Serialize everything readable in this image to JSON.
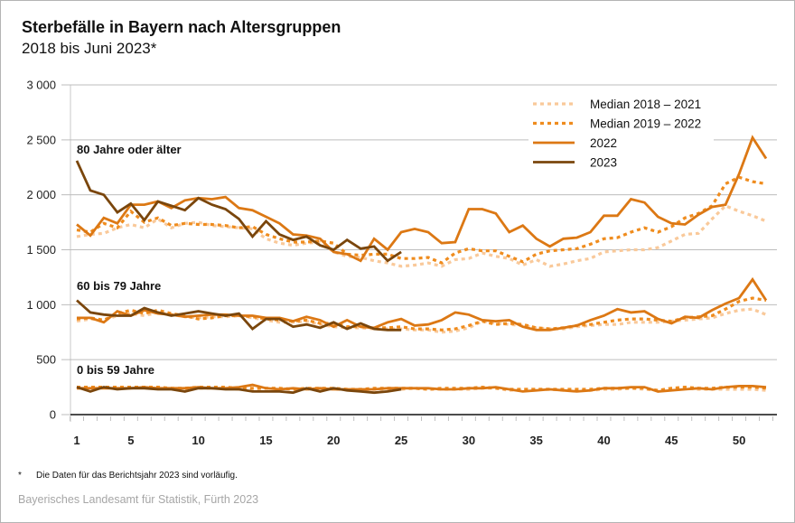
{
  "header": {
    "title": "Sterbefälle in Bayern nach Altersgruppen",
    "subtitle": "2018 bis Juni 2023*"
  },
  "footer": {
    "footnote_marker": "*",
    "footnote": "Die Daten für das Berichtsjahr 2023 sind vorläufig.",
    "source": "Bayerisches Landesamt für Statistik, Fürth 2023"
  },
  "chart_data": {
    "type": "line",
    "title": "Sterbefälle in Bayern nach Altersgruppen",
    "subtitle": "2018 bis Juni 2023*",
    "xlabel": "",
    "ylabel": "",
    "x_range": [
      1,
      52
    ],
    "x_ticks": [
      1,
      5,
      10,
      15,
      20,
      25,
      30,
      35,
      40,
      45,
      50
    ],
    "x_tick_labels": [
      "1",
      "5",
      "10",
      "15",
      "20",
      "25",
      "30",
      "35",
      "40",
      "45",
      "50"
    ],
    "ylim": [
      0,
      3000
    ],
    "y_ticks": [
      0,
      500,
      1000,
      1500,
      2000,
      2500,
      3000
    ],
    "y_tick_labels": [
      "0",
      "500",
      "1 000",
      "1 500",
      "2 000",
      "2 500",
      "3 000"
    ],
    "grid": true,
    "legend_position": "top-right",
    "legend": [
      {
        "key": "median_2018_2021",
        "label": "Median 2018 – 2021",
        "color": "#f9c99a",
        "style": "dotted"
      },
      {
        "key": "median_2019_2022",
        "label": "Median 2019 – 2022",
        "color": "#ef8c1e",
        "style": "dotted"
      },
      {
        "key": "y2022",
        "label": "2022",
        "color": "#dc7814",
        "style": "solid"
      },
      {
        "key": "y2023",
        "label": "2023",
        "color": "#7a460c",
        "style": "solid"
      }
    ],
    "groups": [
      {
        "label": "80 Jahre oder älter",
        "series": {
          "median_2018_2021": [
            1620,
            1640,
            1650,
            1700,
            1730,
            1700,
            1780,
            1700,
            1740,
            1750,
            1720,
            1710,
            1700,
            1690,
            1600,
            1560,
            1540,
            1560,
            1570,
            1480,
            1440,
            1430,
            1400,
            1380,
            1350,
            1360,
            1380,
            1350,
            1410,
            1420,
            1470,
            1440,
            1420,
            1360,
            1410,
            1350,
            1370,
            1400,
            1420,
            1480,
            1490,
            1500,
            1500,
            1520,
            1580,
            1640,
            1650,
            1780,
            1900,
            1850,
            1810,
            1760
          ],
          "median_2019_2022": [
            1680,
            1660,
            1740,
            1700,
            1850,
            1750,
            1790,
            1720,
            1740,
            1730,
            1730,
            1720,
            1700,
            1710,
            1640,
            1600,
            1570,
            1570,
            1580,
            1560,
            1460,
            1450,
            1460,
            1460,
            1420,
            1420,
            1430,
            1380,
            1470,
            1510,
            1490,
            1490,
            1440,
            1390,
            1460,
            1490,
            1500,
            1510,
            1550,
            1600,
            1610,
            1660,
            1700,
            1660,
            1710,
            1790,
            1830,
            1900,
            2100,
            2160,
            2120,
            2100
          ],
          "y2022": [
            1730,
            1630,
            1790,
            1740,
            1910,
            1910,
            1940,
            1880,
            1950,
            1970,
            1960,
            1980,
            1880,
            1860,
            1800,
            1740,
            1640,
            1630,
            1600,
            1480,
            1460,
            1400,
            1600,
            1500,
            1660,
            1690,
            1660,
            1560,
            1570,
            1870,
            1870,
            1830,
            1660,
            1720,
            1600,
            1530,
            1600,
            1610,
            1660,
            1810,
            1810,
            1960,
            1930,
            1800,
            1740,
            1730,
            1820,
            1890,
            1910,
            2190,
            2520,
            2330
          ]
        },
        "y2023": [
          2310,
          2040,
          2000,
          1840,
          1920,
          1770,
          1940,
          1900,
          1860,
          1970,
          1910,
          1870,
          1780,
          1620,
          1760,
          1640,
          1590,
          1620,
          1540,
          1500,
          1590,
          1510,
          1530,
          1400,
          1480
        ]
      },
      {
        "label": "60 bis 79 Jahre",
        "series": {
          "median_2018_2021": [
            850,
            870,
            860,
            900,
            920,
            900,
            930,
            910,
            890,
            880,
            890,
            890,
            900,
            880,
            860,
            840,
            840,
            850,
            820,
            800,
            790,
            790,
            780,
            780,
            780,
            770,
            770,
            750,
            760,
            790,
            850,
            830,
            820,
            810,
            790,
            780,
            780,
            800,
            810,
            820,
            820,
            840,
            840,
            840,
            850,
            860,
            870,
            880,
            920,
            950,
            960,
            910
          ],
          "median_2019_2022": [
            870,
            880,
            860,
            920,
            950,
            920,
            950,
            920,
            900,
            870,
            880,
            900,
            900,
            890,
            870,
            860,
            850,
            860,
            830,
            830,
            800,
            800,
            790,
            790,
            800,
            780,
            780,
            770,
            780,
            810,
            850,
            820,
            830,
            820,
            790,
            780,
            790,
            810,
            820,
            840,
            860,
            870,
            870,
            860,
            850,
            880,
            890,
            900,
            960,
            1030,
            1060,
            1040
          ],
          "y2022": [
            880,
            880,
            840,
            940,
            900,
            950,
            920,
            910,
            890,
            900,
            910,
            910,
            900,
            900,
            880,
            880,
            850,
            890,
            860,
            800,
            860,
            800,
            790,
            840,
            870,
            810,
            820,
            860,
            930,
            910,
            860,
            850,
            860,
            800,
            770,
            770,
            790,
            810,
            860,
            900,
            960,
            930,
            940,
            870,
            830,
            890,
            880,
            950,
            1010,
            1060,
            1230,
            1040
          ]
        },
        "y2023": [
          1040,
          930,
          910,
          900,
          900,
          970,
          930,
          900,
          920,
          940,
          920,
          900,
          920,
          780,
          870,
          870,
          800,
          820,
          790,
          840,
          780,
          830,
          780,
          770,
          770
        ]
      },
      {
        "label": "0 bis 59 Jahre",
        "series": {
          "median_2018_2021": [
            240,
            240,
            250,
            240,
            240,
            250,
            240,
            240,
            230,
            240,
            240,
            240,
            230,
            230,
            240,
            240,
            230,
            230,
            240,
            230,
            230,
            220,
            230,
            230,
            230,
            240,
            230,
            230,
            230,
            230,
            240,
            240,
            220,
            230,
            230,
            230,
            220,
            220,
            220,
            230,
            230,
            240,
            230,
            220,
            240,
            240,
            230,
            230,
            230,
            230,
            230,
            220
          ],
          "median_2019_2022": [
            250,
            250,
            250,
            250,
            250,
            250,
            250,
            240,
            240,
            250,
            250,
            250,
            240,
            240,
            240,
            240,
            230,
            240,
            240,
            240,
            230,
            230,
            240,
            240,
            240,
            240,
            230,
            240,
            240,
            240,
            250,
            240,
            230,
            230,
            230,
            230,
            230,
            230,
            230,
            240,
            240,
            240,
            240,
            220,
            240,
            250,
            240,
            240,
            250,
            250,
            250,
            240
          ],
          "y2022": [
            240,
            240,
            240,
            240,
            240,
            250,
            240,
            240,
            240,
            250,
            240,
            240,
            250,
            270,
            240,
            230,
            240,
            230,
            240,
            230,
            230,
            230,
            230,
            240,
            240,
            240,
            240,
            230,
            230,
            240,
            240,
            250,
            230,
            210,
            220,
            230,
            220,
            210,
            220,
            240,
            240,
            250,
            250,
            210,
            220,
            230,
            240,
            230,
            250,
            260,
            260,
            250
          ]
        },
        "y2023": [
          250,
          210,
          250,
          230,
          240,
          240,
          230,
          230,
          210,
          240,
          240,
          230,
          230,
          210,
          210,
          210,
          200,
          240,
          210,
          240,
          220,
          210,
          200,
          210,
          230
        ]
      }
    ]
  }
}
